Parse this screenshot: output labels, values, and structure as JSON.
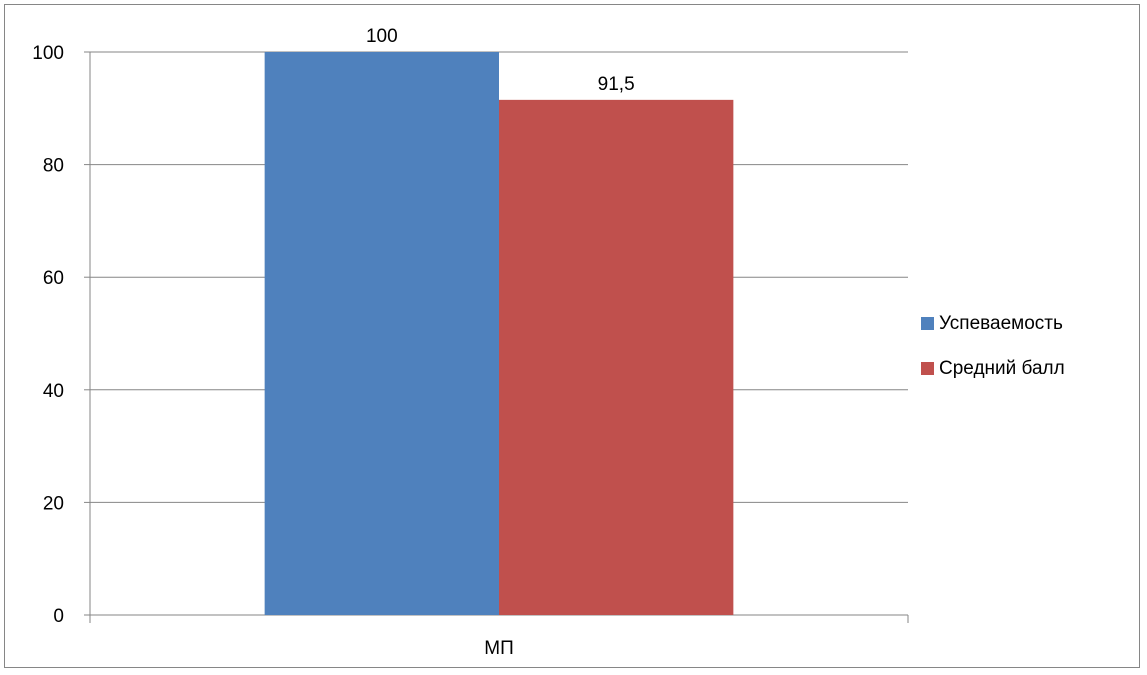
{
  "chart_data": {
    "type": "bar",
    "categories": [
      "МП"
    ],
    "series": [
      {
        "name": "Успеваемость",
        "values": [
          100
        ],
        "color": "#4F81BD",
        "label": "100"
      },
      {
        "name": "Средний балл",
        "values": [
          91.5
        ],
        "color": "#C0504D",
        "label": "91,5"
      }
    ],
    "ylim": [
      0,
      100
    ],
    "yticks": [
      0,
      20,
      40,
      60,
      80,
      100
    ],
    "grid": true,
    "legend": "right",
    "title": "",
    "xlabel": "",
    "ylabel": ""
  }
}
